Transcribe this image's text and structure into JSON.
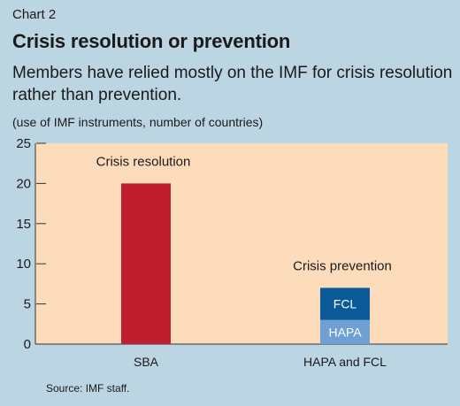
{
  "chart_label": "Chart 2",
  "title": "Crisis resolution or prevention",
  "subtitle": "Members have relied mostly on the IMF for crisis resolution rather than prevention.",
  "unit_note": "(use of IMF instruments, number of countries)",
  "source": "Source: IMF staff.",
  "colors": {
    "background": "#bcd5e3",
    "plot_area": "#fddcbc",
    "sba": "#be1e2d",
    "fcl": "#0a5a98",
    "hapa": "#6fa0d4"
  },
  "chart_data": {
    "type": "bar",
    "stacked": true,
    "categories": [
      "SBA",
      "HAPA and FCL"
    ],
    "series": [
      {
        "name": "SBA",
        "values": [
          20,
          0
        ],
        "color": "#be1e2d"
      },
      {
        "name": "HAPA",
        "values": [
          0,
          3
        ],
        "color": "#6fa0d4"
      },
      {
        "name": "FCL",
        "values": [
          0,
          4
        ],
        "color": "#0a5a98"
      }
    ],
    "bar_labels": [
      {
        "series": "HAPA",
        "category": "HAPA and FCL",
        "text": "HAPA"
      },
      {
        "series": "FCL",
        "category": "HAPA and FCL",
        "text": "FCL"
      }
    ],
    "annotations": [
      {
        "category": "SBA",
        "text": "Crisis resolution"
      },
      {
        "category": "HAPA and FCL",
        "text": "Crisis prevention"
      }
    ],
    "yticks": [
      0,
      5,
      10,
      15,
      20,
      25
    ],
    "ylim": [
      0,
      25
    ],
    "grid": false,
    "xlabel": "",
    "ylabel": ""
  }
}
